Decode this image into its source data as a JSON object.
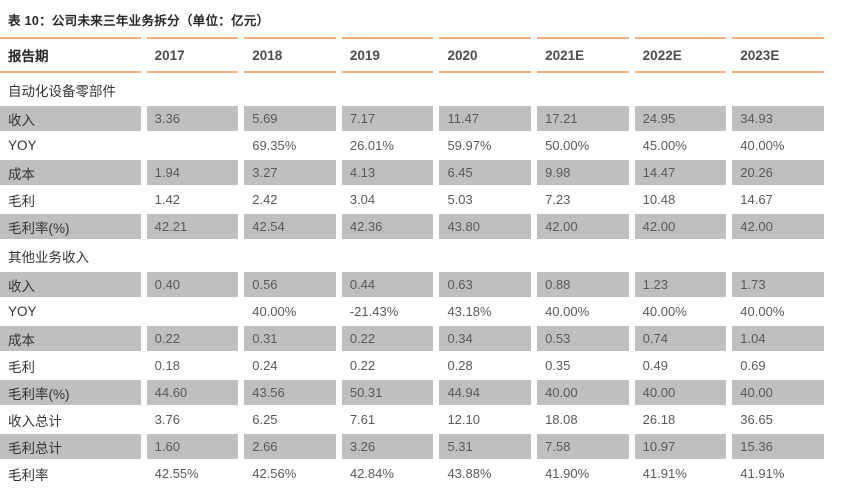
{
  "title": "表 10：公司未来三年业务拆分（单位：亿元）",
  "colors": {
    "accent_line": "#F5AD7D",
    "shaded_row": "#BFBFBF",
    "label_text": "#333333",
    "value_text": "#595959",
    "title_text": "#262626"
  },
  "table": {
    "header": [
      "报告期",
      "2017",
      "2018",
      "2019",
      "2020",
      "2021E",
      "2022E",
      "2023E"
    ],
    "rows": [
      {
        "type": "section",
        "label": "自动化设备零部件"
      },
      {
        "type": "data",
        "shaded": true,
        "label": "收入",
        "values": [
          "3.36",
          "5.69",
          "7.17",
          "11.47",
          "17.21",
          "24.95",
          "34.93"
        ]
      },
      {
        "type": "data",
        "shaded": false,
        "label": "YOY",
        "values": [
          "",
          "69.35%",
          "26.01%",
          "59.97%",
          "50.00%",
          "45.00%",
          "40.00%"
        ]
      },
      {
        "type": "data",
        "shaded": true,
        "label": "成本",
        "values": [
          "1.94",
          "3.27",
          "4.13",
          "6.45",
          "9.98",
          "14.47",
          "20.26"
        ]
      },
      {
        "type": "data",
        "shaded": false,
        "label": "毛利",
        "values": [
          "1.42",
          "2.42",
          "3.04",
          "5.03",
          "7.23",
          "10.48",
          "14.67"
        ]
      },
      {
        "type": "data",
        "shaded": true,
        "label": "毛利率(%)",
        "values": [
          "42.21",
          "42.54",
          "42.36",
          "43.80",
          "42.00",
          "42.00",
          "42.00"
        ]
      },
      {
        "type": "section",
        "label": "其他业务收入"
      },
      {
        "type": "data",
        "shaded": true,
        "label": "收入",
        "values": [
          "0.40",
          "0.56",
          "0.44",
          "0.63",
          "0.88",
          "1.23",
          "1.73"
        ]
      },
      {
        "type": "data",
        "shaded": false,
        "label": "YOY",
        "values": [
          "",
          "40.00%",
          "-21.43%",
          "43.18%",
          "40.00%",
          "40.00%",
          "40.00%"
        ]
      },
      {
        "type": "data",
        "shaded": true,
        "label": "成本",
        "values": [
          "0.22",
          "0.31",
          "0.22",
          "0.34",
          "0.53",
          "0.74",
          "1.04"
        ]
      },
      {
        "type": "data",
        "shaded": false,
        "label": "毛利",
        "values": [
          "0.18",
          "0.24",
          "0.22",
          "0.28",
          "0.35",
          "0.49",
          "0.69"
        ]
      },
      {
        "type": "data",
        "shaded": true,
        "label": "毛利率(%)",
        "values": [
          "44.60",
          "43.56",
          "50.31",
          "44.94",
          "40.00",
          "40.00",
          "40.00"
        ]
      },
      {
        "type": "data",
        "shaded": false,
        "label": "收入总计",
        "values": [
          "3.76",
          "6.25",
          "7.61",
          "12.10",
          "18.08",
          "26.18",
          "36.65"
        ]
      },
      {
        "type": "data",
        "shaded": true,
        "label": "毛利总计",
        "values": [
          "1.60",
          "2.66",
          "3.26",
          "5.31",
          "7.58",
          "10.97",
          "15.36"
        ]
      },
      {
        "type": "data",
        "shaded": false,
        "label": "毛利率",
        "values": [
          "42.55%",
          "42.56%",
          "42.84%",
          "43.88%",
          "41.90%",
          "41.91%",
          "41.91%"
        ]
      }
    ]
  }
}
